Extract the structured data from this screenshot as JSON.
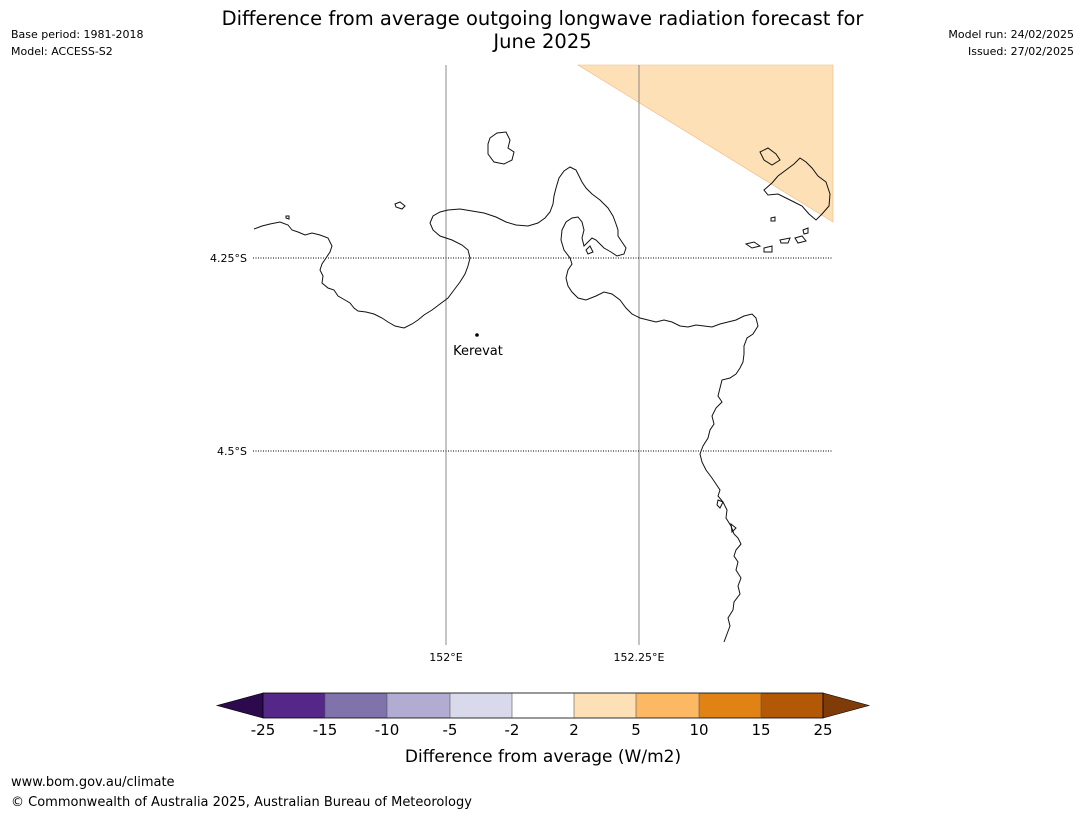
{
  "header": {
    "title_line1": "Difference from average outgoing longwave radiation forecast for",
    "title_line2": "June 2025",
    "base_period": "Base period: 1981-2018",
    "model": "Model: ACCESS-S2",
    "model_run": "Model run: 24/02/2025",
    "issued": "Issued: 27/02/2025"
  },
  "map": {
    "lat_labels": [
      "4.25°S",
      "4.5°S"
    ],
    "lon_labels": [
      "152°E",
      "152.25°E"
    ],
    "place": "Kerevat",
    "colors": {
      "anomaly_2_5": "#fde0b6",
      "coast": "#000000",
      "grid": "#888888"
    }
  },
  "colorbar": {
    "title": "Difference from average (W/m2)",
    "ticks": [
      "-25",
      "-15",
      "-10",
      "-5",
      "-2",
      "2",
      "5",
      "10",
      "15",
      "25"
    ],
    "colors": [
      "#2d0a4e",
      "#542788",
      "#8073ac",
      "#b2abd2",
      "#d8daeb",
      "#ffffff",
      "#fee0b6",
      "#fdb863",
      "#e08214",
      "#b35806",
      "#7f3b08"
    ]
  },
  "footer": {
    "url": "www.bom.gov.au/climate",
    "copyright": "© Commonwealth of Australia 2025, Australian Bureau of Meteorology"
  }
}
